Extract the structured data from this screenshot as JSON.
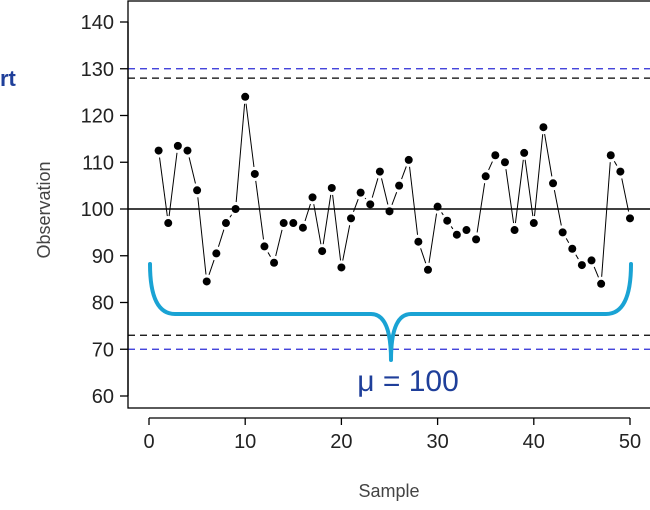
{
  "fragment_text": "rt",
  "annotation": "μ = 100",
  "chart_data": {
    "type": "line",
    "xlabel": "Sample",
    "ylabel": "Observation",
    "xlim": [
      0,
      50
    ],
    "ylim": [
      55,
      143
    ],
    "x_ticks": [
      0,
      10,
      20,
      30,
      40,
      50
    ],
    "y_ticks": [
      60,
      70,
      80,
      90,
      100,
      110,
      120,
      130,
      140
    ],
    "center_line": 100,
    "black_dashed_limits": [
      73,
      128
    ],
    "blue_dashed_limits": [
      70,
      130
    ],
    "mean_label_value": 100,
    "colors": {
      "points": "#000000",
      "center_line": "#000000",
      "black_limits": "#000000",
      "blue_limits": "#2b2bd6",
      "brace": "#1aa3d4",
      "annotation": "#1f3f9a"
    },
    "series": [
      {
        "x": [
          1,
          2,
          3,
          4,
          5,
          6,
          7,
          8,
          9,
          10,
          11,
          12,
          13,
          14,
          15,
          16,
          17,
          18,
          19,
          20,
          21,
          22,
          23,
          24,
          25,
          26,
          27,
          28,
          29,
          30,
          31,
          32,
          33,
          34,
          35,
          36,
          37,
          38,
          39,
          40,
          41,
          42,
          43,
          44,
          45,
          46,
          47,
          48,
          49,
          50
        ],
        "values": [
          112.5,
          97,
          113.5,
          112.5,
          104,
          84.5,
          90.5,
          97,
          100,
          124,
          107.5,
          92,
          88.5,
          97,
          97,
          96,
          102.5,
          91,
          104.5,
          87.5,
          98,
          103.5,
          101,
          108,
          99.5,
          105,
          110.5,
          93,
          87,
          100.5,
          97.5,
          94.5,
          95.5,
          93.5,
          107,
          111.5,
          110,
          95.5,
          112,
          97,
          117.5,
          105.5,
          95,
          91.5,
          88,
          89,
          84,
          111.5,
          108,
          98
        ]
      }
    ]
  }
}
